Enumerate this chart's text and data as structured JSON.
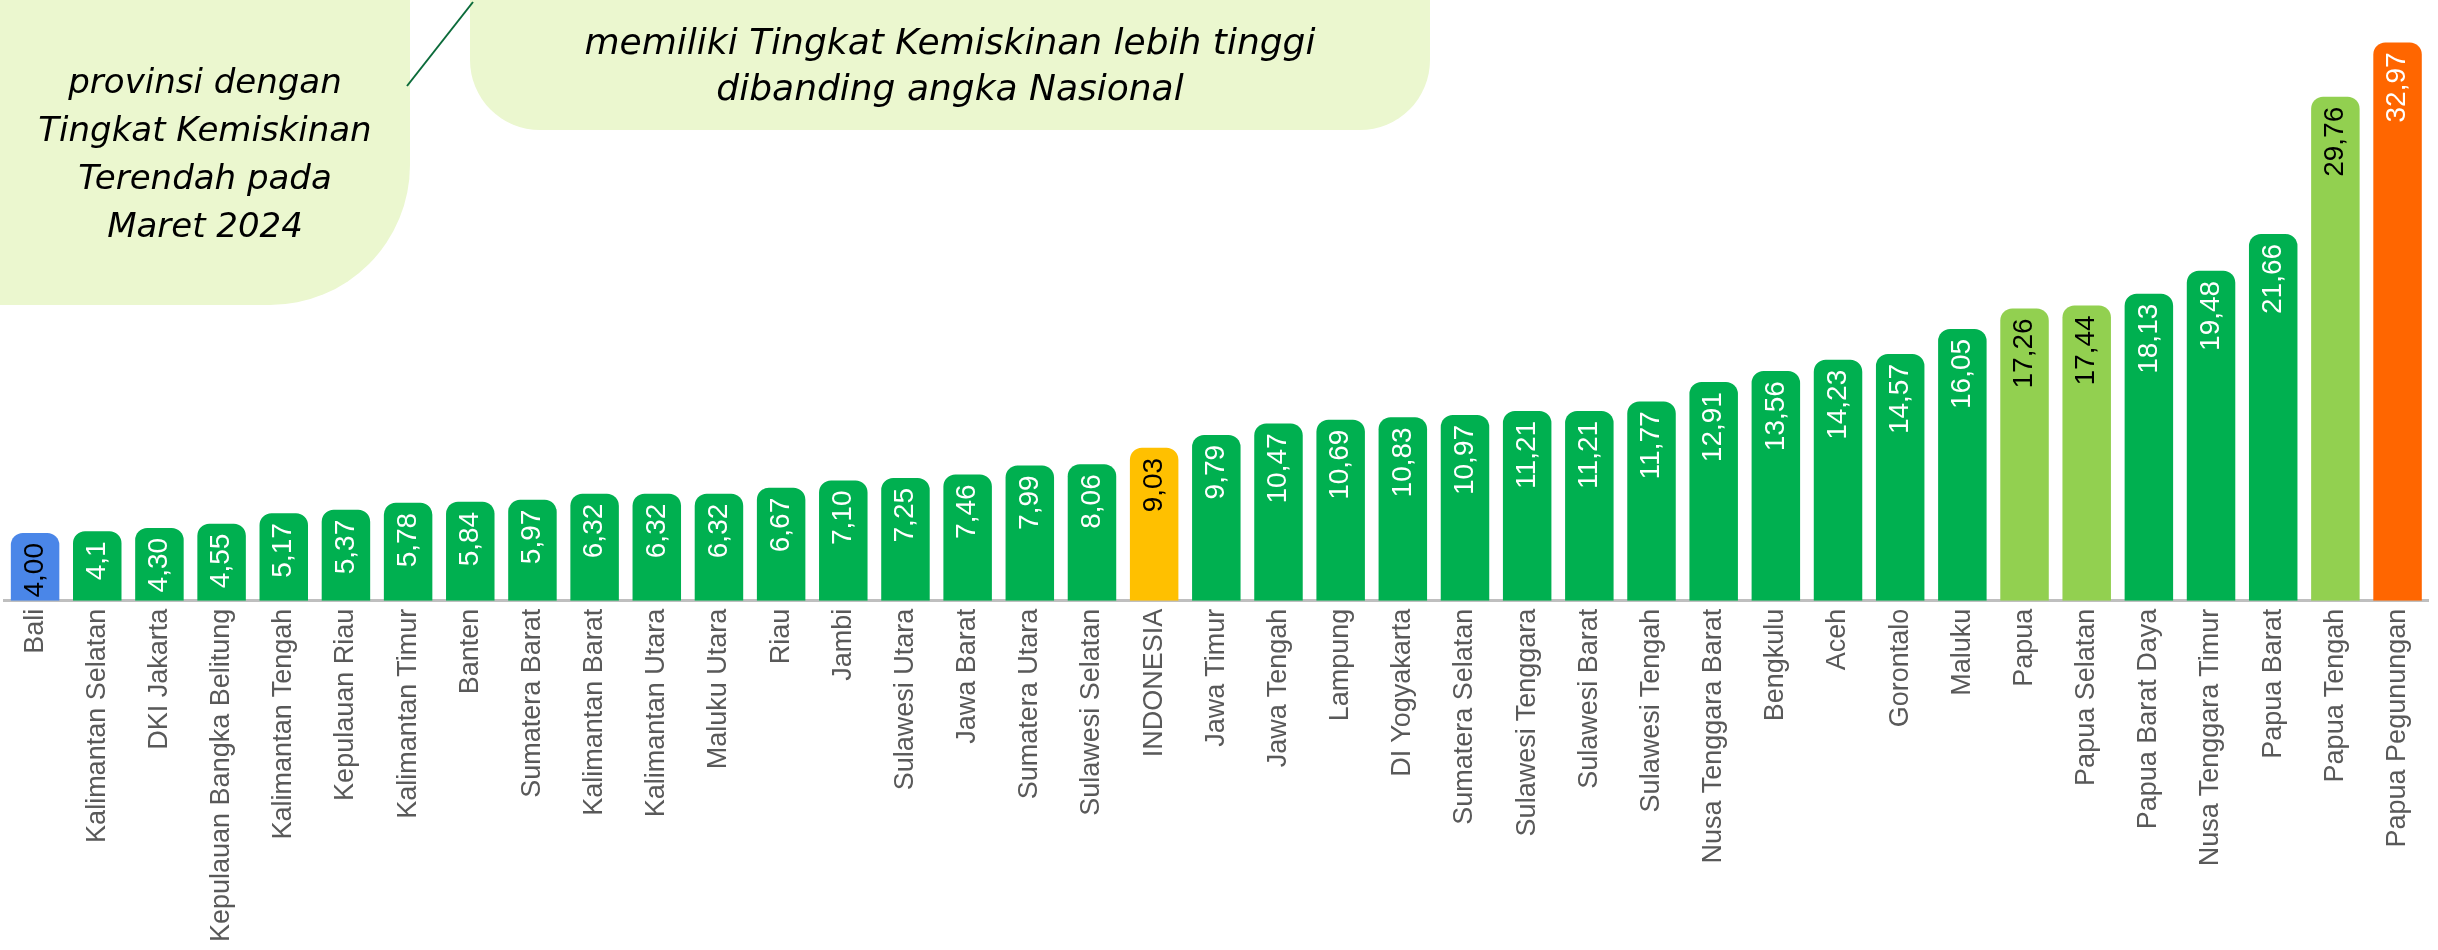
{
  "chart_data": {
    "type": "bar",
    "categories": [
      "Bali",
      "Kalimantan Selatan",
      "DKI Jakarta",
      "Kepulauan Bangka Belitung",
      "Kalimantan Tengah",
      "Kepulauan Riau",
      "Kalimantan Timur",
      "Banten",
      "Sumatera Barat",
      "Kalimantan Barat",
      "Kalimantan Utara",
      "Maluku Utara",
      "Riau",
      "Jambi",
      "Sulawesi Utara",
      "Jawa Barat",
      "Sumatera Utara",
      "Sulawesi Selatan",
      "INDONESIA",
      "Jawa Timur",
      "Jawa Tengah",
      "Lampung",
      "DI Yogyakarta",
      "Sumatera Selatan",
      "Sulawesi Tenggara",
      "Sulawesi Barat",
      "Sulawesi Tengah",
      "Nusa Tenggara Barat",
      "Bengkulu",
      "Aceh",
      "Gorontalo",
      "Maluku",
      "Papua",
      "Papua Selatan",
      "Papua Barat Daya",
      "Nusa Tenggara Timur",
      "Papua Barat",
      "Papua Tengah",
      "Papua Pegunungan"
    ],
    "values": [
      4.0,
      4.1,
      4.3,
      4.55,
      5.17,
      5.37,
      5.78,
      5.84,
      5.97,
      6.32,
      6.32,
      6.32,
      6.67,
      7.1,
      7.25,
      7.46,
      7.99,
      8.06,
      9.03,
      9.79,
      10.47,
      10.69,
      10.83,
      10.97,
      11.21,
      11.21,
      11.77,
      12.91,
      13.56,
      14.23,
      14.57,
      16.05,
      17.26,
      17.44,
      18.13,
      19.48,
      21.66,
      29.76,
      32.97
    ],
    "value_labels": [
      "4,00",
      "4,1",
      "4,30",
      "4,55",
      "5,17",
      "5,37",
      "5,78",
      "5,84",
      "5,97",
      "6,32",
      "6,32",
      "6,32",
      "6,67",
      "7,10",
      "7,25",
      "7,46",
      "7,99",
      "8,06",
      "9,03",
      "9,79",
      "10,47",
      "10,69",
      "10,83",
      "10,97",
      "11,21",
      "11,21",
      "11,77",
      "12,91",
      "13,56",
      "14,23",
      "14,57",
      "16,05",
      "17,26",
      "17,44",
      "18,13",
      "19,48",
      "21,66",
      "29,76",
      "32,97"
    ],
    "colors": [
      "#4a86e8",
      "#00b050",
      "#00b050",
      "#00b050",
      "#00b050",
      "#00b050",
      "#00b050",
      "#00b050",
      "#00b050",
      "#00b050",
      "#00b050",
      "#00b050",
      "#00b050",
      "#00b050",
      "#00b050",
      "#00b050",
      "#00b050",
      "#00b050",
      "#ffc000",
      "#00b050",
      "#00b050",
      "#00b050",
      "#00b050",
      "#00b050",
      "#00b050",
      "#00b050",
      "#00b050",
      "#00b050",
      "#00b050",
      "#00b050",
      "#00b050",
      "#00b050",
      "#92d050",
      "#92d050",
      "#00b050",
      "#00b050",
      "#00b050",
      "#92d050",
      "#ff6600"
    ],
    "annotations": [
      "provinsi dengan Tingkat Kemiskinan Terendah pada Maret 2024",
      "memiliki Tingkat Kemiskinan lebih tinggi dibanding angka Nasional"
    ],
    "grid": false,
    "legend": false,
    "tick_labels": "x"
  }
}
